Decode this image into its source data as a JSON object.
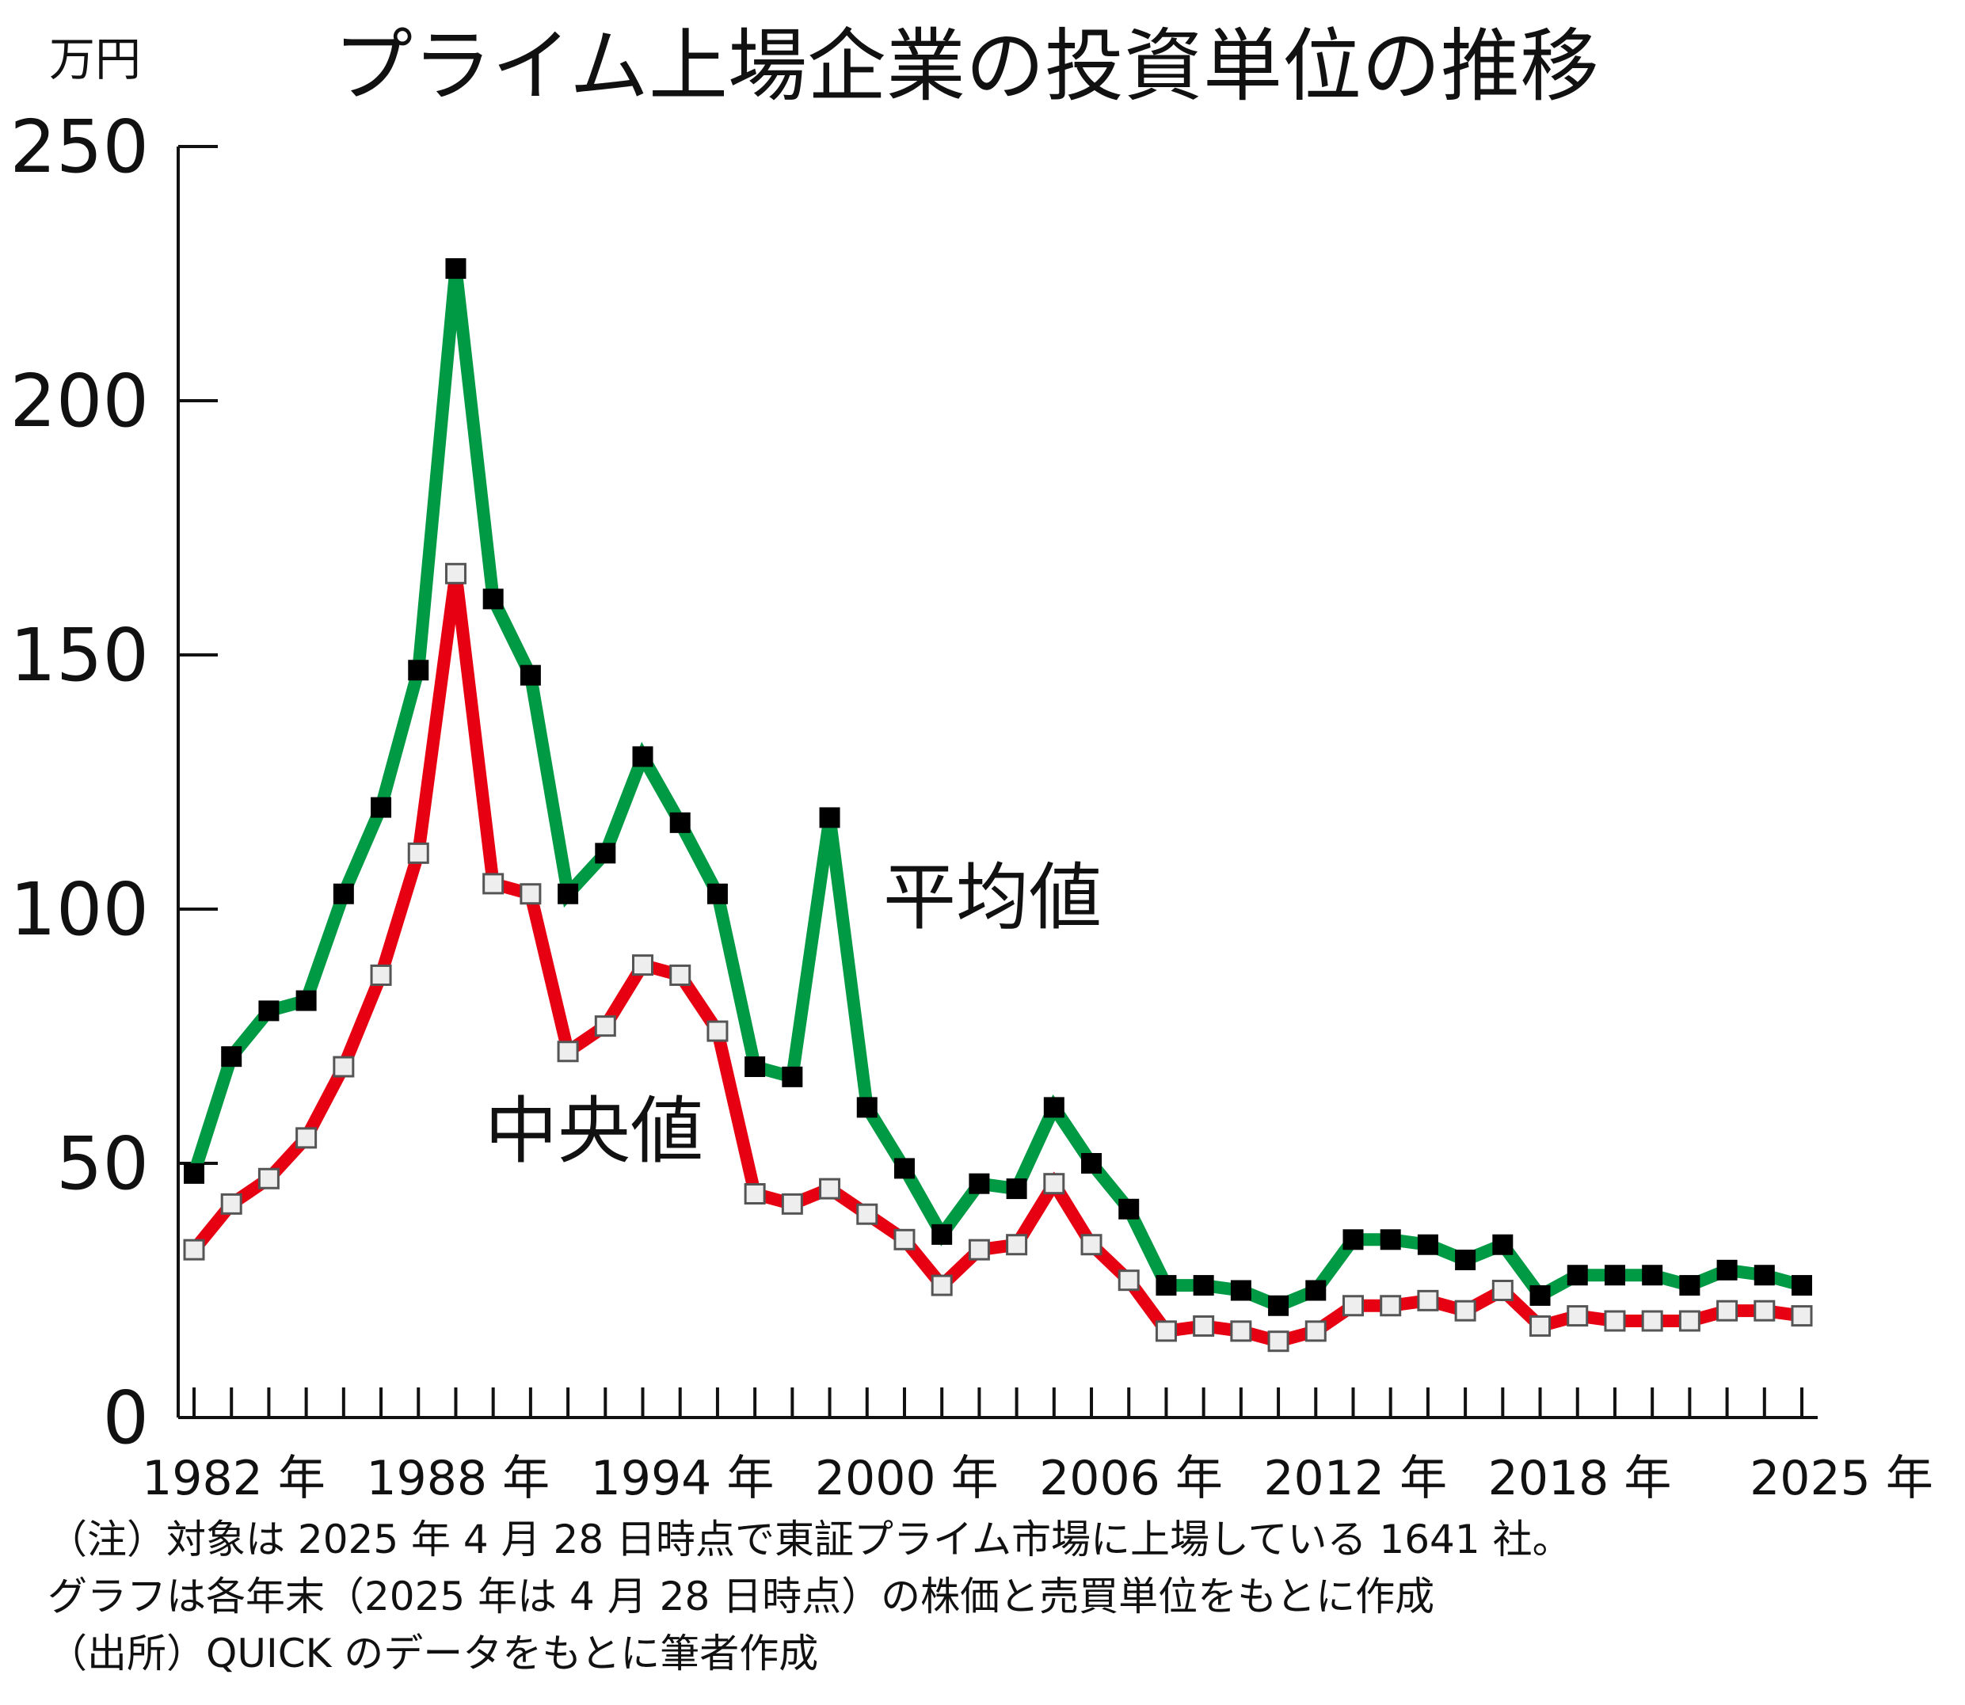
{
  "chart_data": {
    "type": "line",
    "title": "プライム上場企業の投資単位の推移",
    "ylabel": "万円",
    "ylim": [
      0,
      250
    ],
    "yticks": [
      "0",
      "50",
      "100",
      "150",
      "200",
      "250"
    ],
    "xlim": [
      1982,
      2025
    ],
    "xtick_labels": [
      {
        "year": 1982,
        "label": "1982 年"
      },
      {
        "year": 1988,
        "label": "1988 年"
      },
      {
        "year": 1994,
        "label": "1994 年"
      },
      {
        "year": 2000,
        "label": "2000 年"
      },
      {
        "year": 2006,
        "label": "2006 年"
      },
      {
        "year": 2012,
        "label": "2012 年"
      },
      {
        "year": 2018,
        "label": "2018 年"
      },
      {
        "year": 2025,
        "label": "2025 年"
      }
    ],
    "x": [
      1982,
      1983,
      1984,
      1985,
      1986,
      1987,
      1988,
      1989,
      1990,
      1991,
      1992,
      1993,
      1994,
      1995,
      1996,
      1997,
      1998,
      1999,
      2000,
      2001,
      2002,
      2003,
      2004,
      2005,
      2006,
      2007,
      2008,
      2009,
      2010,
      2011,
      2012,
      2013,
      2014,
      2015,
      2016,
      2017,
      2018,
      2019,
      2020,
      2021,
      2022,
      2023,
      2024,
      2025
    ],
    "grid": false,
    "series": [
      {
        "name": "平均値",
        "color": "#009944",
        "marker": "filled-square",
        "values": [
          48,
          71,
          80,
          82,
          103,
          120,
          147,
          226,
          161,
          146,
          103,
          111,
          130,
          117,
          103,
          69,
          67,
          118,
          61,
          49,
          36,
          46,
          45,
          61,
          50,
          41,
          26,
          26,
          25,
          22,
          25,
          35,
          35,
          34,
          31,
          34,
          24,
          28,
          28,
          28,
          26,
          29,
          28,
          26
        ]
      },
      {
        "name": "中央値",
        "color": "#e60012",
        "marker": "hollow-square",
        "values": [
          33,
          42,
          47,
          55,
          69,
          87,
          111,
          166,
          105,
          103,
          72,
          77,
          89,
          87,
          76,
          44,
          42,
          45,
          40,
          35,
          26,
          33,
          34,
          46,
          34,
          27,
          17,
          18,
          17,
          15,
          17,
          22,
          22,
          23,
          21,
          25,
          18,
          20,
          19,
          19,
          19,
          21,
          21,
          20
        ]
      }
    ]
  },
  "series_labels": {
    "mean": {
      "text": "平均値",
      "color": "#009944"
    },
    "median": {
      "text": "中央値",
      "color": "#e60012"
    }
  },
  "notes": [
    "（注）対象は 2025 年 4 月 28 日時点で東証プライム市場に上場している 1641 社。",
    "グラフは各年末（2025 年は 4 月 28 日時点）の株価と売買単位をもとに作成",
    "（出所）QUICK のデータをもとに筆者作成"
  ]
}
